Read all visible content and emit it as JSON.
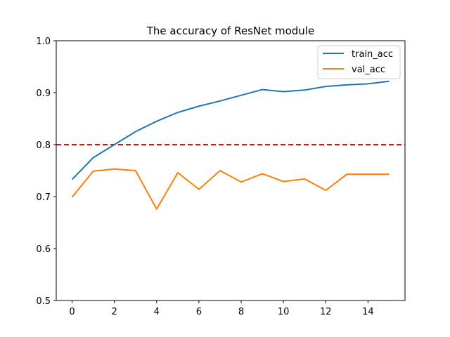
{
  "chart_data": {
    "type": "line",
    "title": "The accuracy of ResNet module",
    "xlabel": "",
    "ylabel": "",
    "x": [
      0,
      1,
      2,
      3,
      4,
      5,
      6,
      7,
      8,
      9,
      10,
      11,
      12,
      13,
      14,
      15
    ],
    "xlim": [
      -0.75,
      15.75
    ],
    "ylim": [
      0.5,
      1.0
    ],
    "xticks": [
      0,
      2,
      4,
      6,
      8,
      10,
      12,
      14
    ],
    "xtick_labels": [
      "0",
      "2",
      "4",
      "6",
      "8",
      "10",
      "12",
      "14"
    ],
    "yticks": [
      0.5,
      0.6,
      0.7,
      0.8,
      0.9,
      1.0
    ],
    "ytick_labels": [
      "0.5",
      "0.6",
      "0.7",
      "0.8",
      "0.9",
      "1.0"
    ],
    "grid": false,
    "legend_position": "top-right",
    "series": [
      {
        "name": "train_acc",
        "color": "#1f77b4",
        "values": [
          0.733,
          0.775,
          0.8,
          0.825,
          0.845,
          0.862,
          0.874,
          0.884,
          0.895,
          0.906,
          0.902,
          0.905,
          0.912,
          0.915,
          0.917,
          0.922
        ]
      },
      {
        "name": "val_acc",
        "color": "#ff7f0e",
        "values": [
          0.699,
          0.749,
          0.753,
          0.75,
          0.676,
          0.746,
          0.714,
          0.75,
          0.728,
          0.744,
          0.729,
          0.734,
          0.712,
          0.743,
          0.743,
          0.743
        ]
      }
    ],
    "reference_line": {
      "y": 0.8,
      "color": "#ff0000",
      "style": "dashed"
    }
  }
}
